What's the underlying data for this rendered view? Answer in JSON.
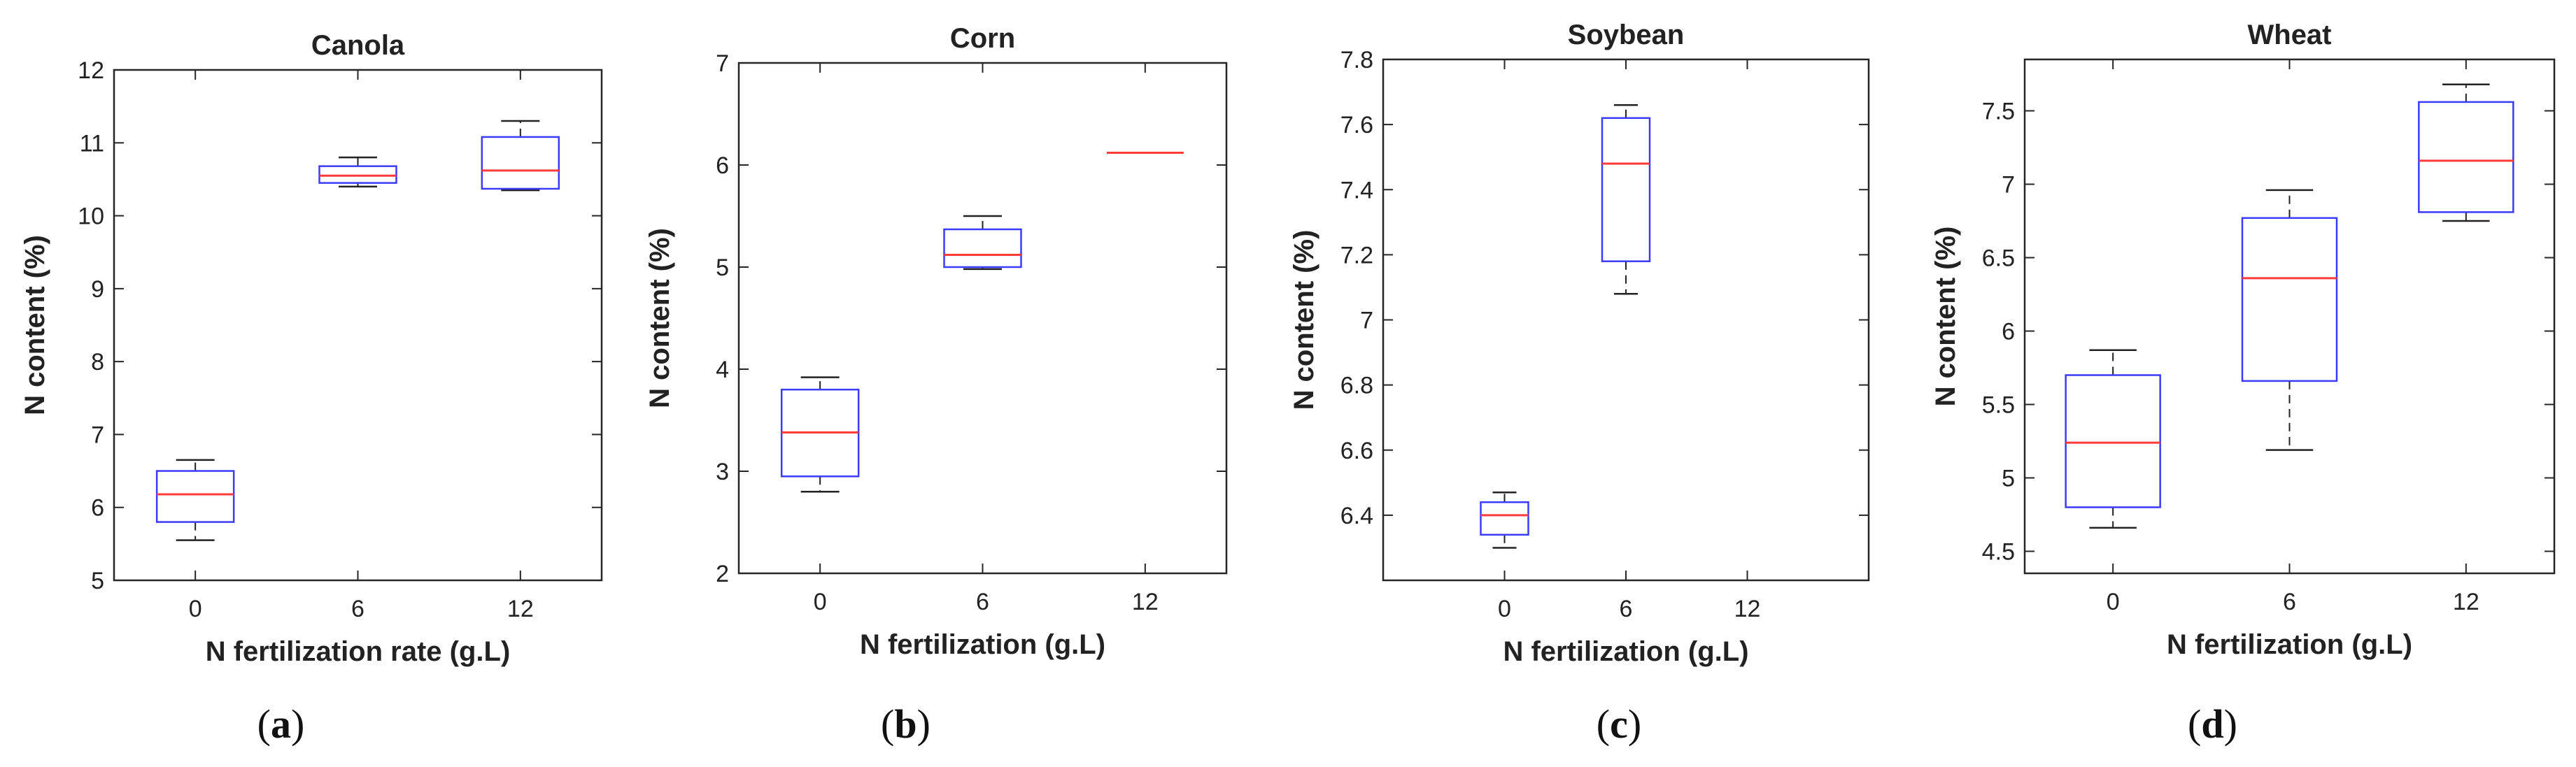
{
  "chart_data": [
    {
      "type": "box",
      "title": "Canola",
      "xlabel": "N fertilization rate (g.L)",
      "ylabel": "N content (%)",
      "panel_label": "a",
      "categories": [
        "0",
        "6",
        "12"
      ],
      "ylim": [
        5,
        12
      ],
      "yticks": [
        5,
        6,
        7,
        8,
        9,
        10,
        11,
        12
      ],
      "ytick_labels": [
        "5",
        "6",
        "7",
        "8",
        "9",
        "10",
        "11",
        "12"
      ],
      "xlim": [
        0.5,
        3.5
      ],
      "boxes": [
        {
          "x": 1,
          "wlo": 5.55,
          "q1": 5.8,
          "med": 6.18,
          "q3": 6.5,
          "whi": 6.65
        },
        {
          "x": 2,
          "wlo": 10.4,
          "q1": 10.45,
          "med": 10.55,
          "q3": 10.68,
          "whi": 10.8
        },
        {
          "x": 3,
          "wlo": 10.35,
          "q1": 10.37,
          "med": 10.62,
          "q3": 11.08,
          "whi": 11.3
        }
      ]
    },
    {
      "type": "box",
      "title": "Corn",
      "xlabel": "N fertilization (g.L)",
      "ylabel": "N content (%)",
      "panel_label": "b",
      "categories": [
        "0",
        "6",
        "12"
      ],
      "ylim": [
        2,
        7
      ],
      "yticks": [
        2,
        3,
        4,
        5,
        6,
        7
      ],
      "ytick_labels": [
        "2",
        "3",
        "4",
        "5",
        "6",
        "7"
      ],
      "xlim": [
        0.5,
        3.5
      ],
      "boxes": [
        {
          "x": 1,
          "wlo": 2.8,
          "q1": 2.95,
          "med": 3.38,
          "q3": 3.8,
          "whi": 3.92
        },
        {
          "x": 2,
          "wlo": 4.98,
          "q1": 5.0,
          "med": 5.12,
          "q3": 5.37,
          "whi": 5.5
        },
        {
          "x": 3,
          "wlo": 6.12,
          "q1": 6.12,
          "med": 6.12,
          "q3": 6.12,
          "whi": 6.12
        }
      ]
    },
    {
      "type": "box",
      "title": "Soybean",
      "xlabel": "N fertilization (g.L)",
      "ylabel": "N content (%)",
      "panel_label": "c",
      "categories": [
        "0",
        "6",
        "12"
      ],
      "ylim": [
        6.2,
        7.8
      ],
      "yticks": [
        6.4,
        6.6,
        6.8,
        7.0,
        7.2,
        7.4,
        7.6,
        7.8
      ],
      "ytick_labels": [
        "6.4",
        "6.6",
        "6.8",
        "7",
        "7.2",
        "7.4",
        "7.6",
        "7.8"
      ],
      "xlim": [
        0,
        4
      ],
      "boxes": [
        {
          "x": 1,
          "wlo": 6.3,
          "q1": 6.34,
          "med": 6.4,
          "q3": 6.44,
          "whi": 6.47
        },
        {
          "x": 2,
          "wlo": 7.08,
          "q1": 7.18,
          "med": 7.48,
          "q3": 7.62,
          "whi": 7.66
        }
      ]
    },
    {
      "type": "box",
      "title": "Wheat",
      "xlabel": "N fertilization (g.L)",
      "ylabel": "N content (%)",
      "panel_label": "d",
      "categories": [
        "0",
        "6",
        "12"
      ],
      "ylim": [
        4.35,
        7.85
      ],
      "yticks": [
        4.5,
        5,
        5.5,
        6,
        6.5,
        7,
        7.5
      ],
      "ytick_labels": [
        "4.5",
        "5",
        "5.5",
        "6",
        "6.5",
        "7",
        "7.5"
      ],
      "xlim": [
        0.5,
        3.5
      ],
      "boxes": [
        {
          "x": 1,
          "wlo": 4.66,
          "q1": 4.8,
          "med": 5.24,
          "q3": 5.7,
          "whi": 5.87
        },
        {
          "x": 2,
          "wlo": 5.19,
          "q1": 5.66,
          "med": 6.36,
          "q3": 6.77,
          "whi": 6.96
        },
        {
          "x": 3,
          "wlo": 6.75,
          "q1": 6.81,
          "med": 7.16,
          "q3": 7.56,
          "whi": 7.68
        }
      ]
    }
  ],
  "colors": {
    "box": "#3b3bff",
    "median": "#ff3b3b",
    "whisker": "#222222",
    "axes": "#262626"
  }
}
